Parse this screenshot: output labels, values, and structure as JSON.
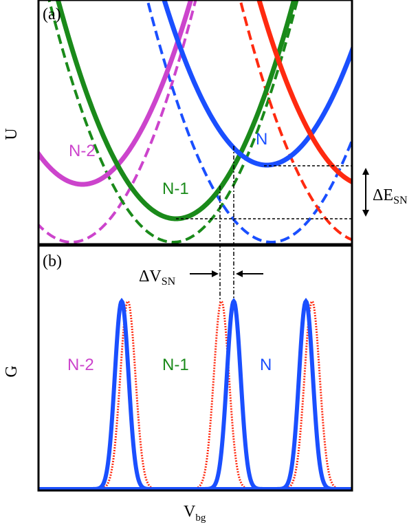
{
  "panel_a": {
    "tag": "(a)",
    "y_axis_label": "U",
    "curve_labels": [
      {
        "text": "N-2",
        "color": "#cc44cc"
      },
      {
        "text": "N-1",
        "color": "#1a8a1a"
      },
      {
        "text": "N",
        "color": "#1a4fff"
      }
    ],
    "delta_e": {
      "base": "ΔE",
      "sub": "SN"
    }
  },
  "panel_b": {
    "tag": "(b)",
    "y_axis_label": "G",
    "peak_labels": [
      {
        "text": "N-2",
        "color": "#cc44cc"
      },
      {
        "text": "N-1",
        "color": "#1a8a1a"
      },
      {
        "text": "N",
        "color": "#1a4fff"
      }
    ],
    "delta_v": {
      "base": "ΔV",
      "sub": "SN"
    },
    "x_axis_label": {
      "base": "V",
      "sub": "bg"
    }
  },
  "colors": {
    "magenta": "#cc44cc",
    "green": "#1a8a1a",
    "blue": "#1a4fff",
    "red": "#ff2a10",
    "frame": "#000000"
  }
}
